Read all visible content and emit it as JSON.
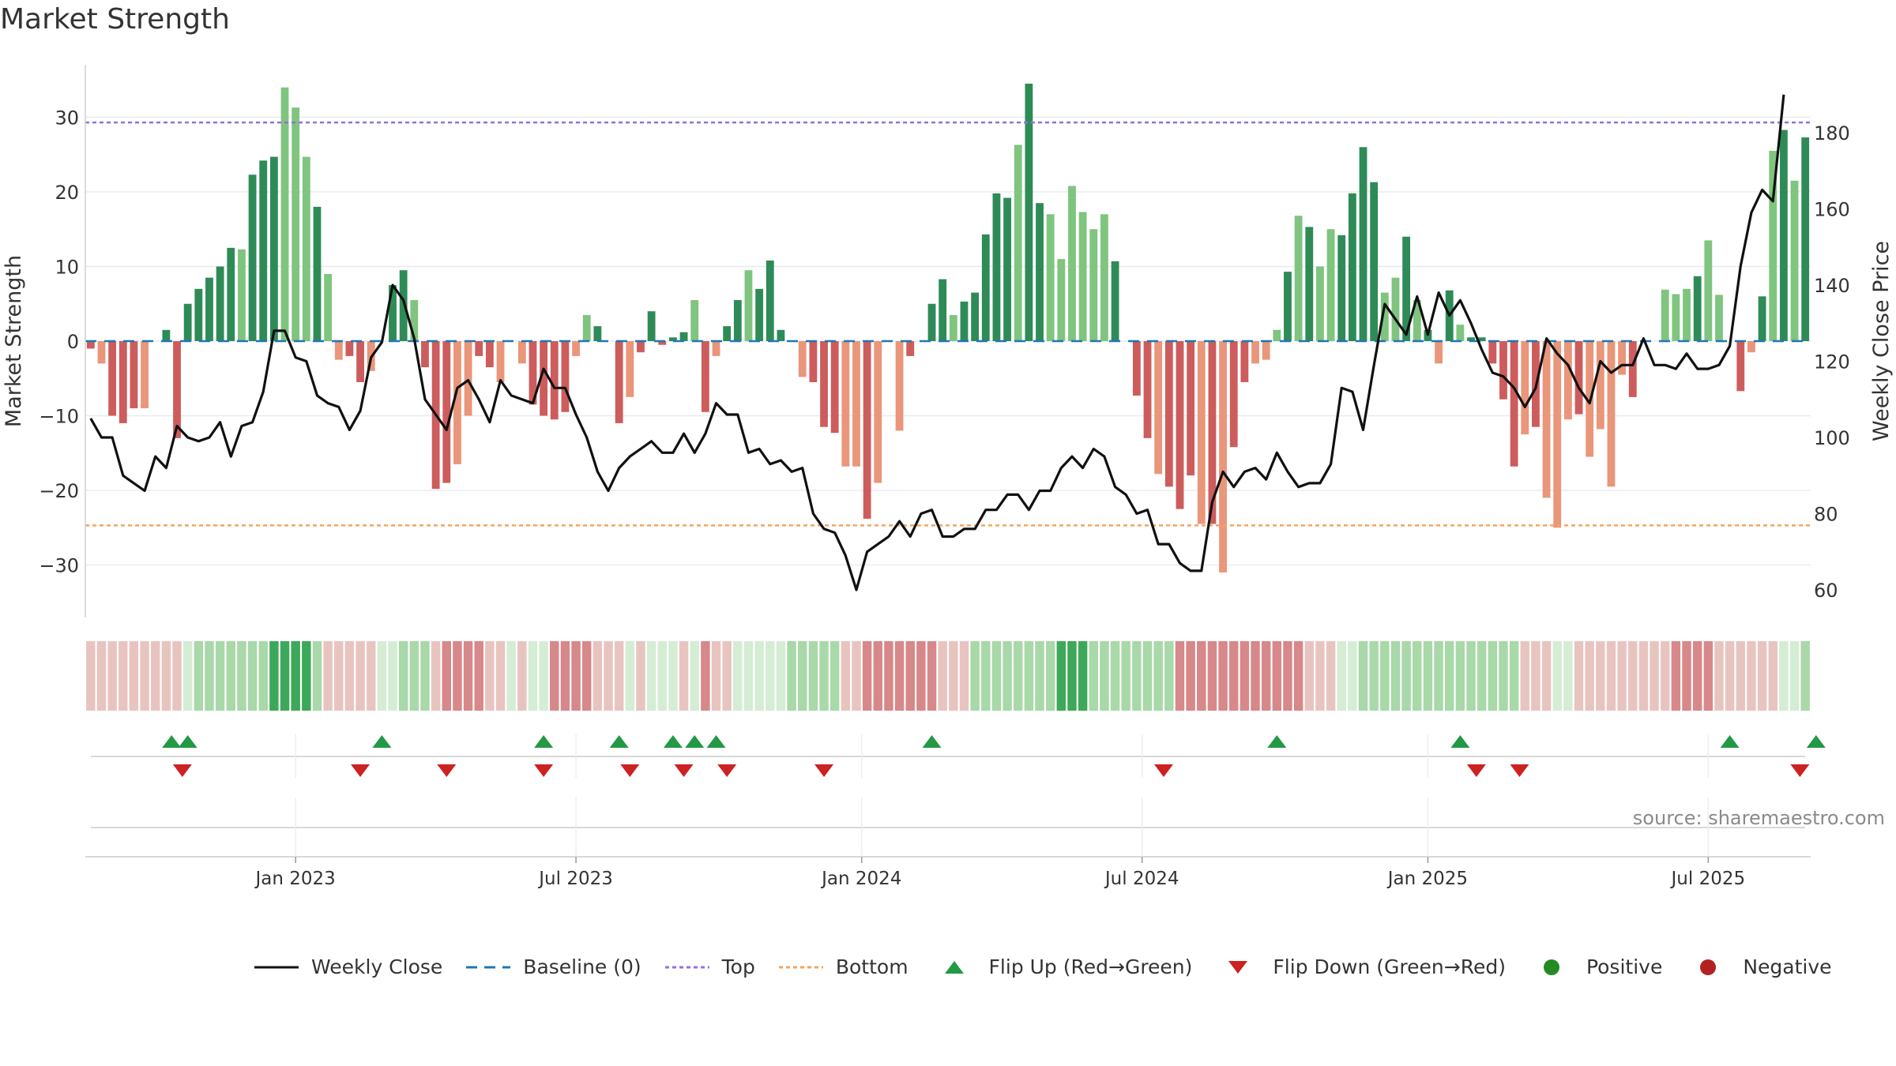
{
  "title": "Market Strength",
  "source": "source: sharemaestro.com",
  "colors": {
    "dark_green": "#2e8b57",
    "light_green": "#7fc47f",
    "dark_red": "#cd5c5c",
    "light_red": "#e9967a",
    "baseline": "#1f77b4",
    "top": "#9370db",
    "bottom": "#f4a460",
    "close": "#111111",
    "flip_up": "#229944",
    "flip_down": "#cc2222",
    "positive": "#228b22",
    "negative": "#b22222"
  },
  "legend": [
    {
      "key": "close",
      "label": "Weekly Close",
      "symbol": "line"
    },
    {
      "key": "baseline",
      "label": "Baseline (0)",
      "symbol": "dash"
    },
    {
      "key": "top",
      "label": "Top",
      "symbol": "dot"
    },
    {
      "key": "bottom",
      "label": "Bottom",
      "symbol": "dot"
    },
    {
      "key": "flip_up",
      "label": "Flip Up (Red→Green)",
      "symbol": "tri-up"
    },
    {
      "key": "flip_down",
      "label": "Flip Down (Green→Red)",
      "symbol": "tri-down"
    },
    {
      "key": "positive",
      "label": "Positive",
      "symbol": "circle"
    },
    {
      "key": "negative",
      "label": "Negative",
      "symbol": "circle"
    }
  ],
  "chart_data": {
    "type": "bar",
    "title": "Market Strength",
    "ylabel": "Market Strength",
    "y2label": "Weekly Close Price",
    "ylim": [
      -36,
      37
    ],
    "y2lim": [
      50,
      197
    ],
    "yticks": [
      30,
      20,
      10,
      0,
      -10,
      -20,
      -30
    ],
    "ytick_labels": [
      "30",
      "20",
      "10",
      "0",
      "−10",
      "−20",
      "−30"
    ],
    "y2ticks": [
      180,
      160,
      140,
      120,
      100,
      80,
      60
    ],
    "x_ticks": [
      {
        "week": 19,
        "label": "Jan 2023"
      },
      {
        "week": 45,
        "label": "Jul 2023"
      },
      {
        "week": 71.5,
        "label": "Jan 2024"
      },
      {
        "week": 97.5,
        "label": "Jul 2024"
      },
      {
        "week": 124,
        "label": "Jan 2025"
      },
      {
        "week": 150,
        "label": "Jul 2025"
      }
    ],
    "top_level": 29.3,
    "bottom_level": -24.7,
    "baseline": 0,
    "series": [
      {
        "name": "Market Strength",
        "values": [
          -1,
          -3,
          -10,
          -11,
          -9,
          -9,
          0,
          1.5,
          -13,
          5,
          7,
          8.5,
          10,
          12.5,
          12.3,
          22.3,
          24.2,
          24.7,
          34,
          31.3,
          24.7,
          18,
          9,
          -2.5,
          -2,
          -5.5,
          -4,
          0,
          7.5,
          9.5,
          5.5,
          -3.5,
          -19.8,
          -19,
          -16.5,
          -10,
          -2,
          -3.5,
          -5.5,
          0,
          -3,
          -8.5,
          -10,
          -10.5,
          -9.5,
          -2,
          3.5,
          2,
          0,
          -11,
          -7.5,
          -1.5,
          4,
          -0.5,
          0.5,
          1.2,
          5.5,
          -9.5,
          -2,
          2,
          5.5,
          9.5,
          7,
          10.8,
          1.5,
          0,
          -4.8,
          -5.5,
          -11.5,
          -12.3,
          -16.8,
          -16.8,
          -23.8,
          -19,
          0,
          -12,
          -2,
          0,
          5,
          8.3,
          3.5,
          5.3,
          6.5,
          14.3,
          19.8,
          19.2,
          26.3,
          34.5,
          18.5,
          17,
          11,
          20.8,
          17.3,
          15,
          17,
          10.7,
          0,
          -7.3,
          -13,
          -17.8,
          -19.5,
          -22.5,
          -18,
          -24.5,
          -24.5,
          -31,
          -14.2,
          -5.5,
          -3,
          -2.5,
          1.5,
          9.3,
          16.8,
          15.3,
          10,
          15,
          14.2,
          19.8,
          26,
          21.3,
          6.5,
          8.5,
          14,
          5.5,
          1.5,
          -3,
          6.8,
          2.2,
          0.5,
          0.5,
          -3,
          -7.8,
          -16.8,
          -12.5,
          -11.5,
          -21,
          -25,
          -10.5,
          -9.8,
          -15.5,
          -11.8,
          -19.5,
          -4.5,
          -7.5,
          0,
          0,
          6.9,
          6.3,
          7,
          8.7,
          13.5,
          6.2,
          0,
          -6.7,
          -1.5,
          6,
          25.5,
          28.3,
          21.5,
          27.3
        ],
        "shades": "dmdddmddddddddmdddmmmdmmddmdddmdddmmddmdmddddmmdmdmdddddmdmddmdddmmdddmmdmmmddddmdddddmddmmmmmmddddmdddmdmddmmmdmdmmddddmmdmdmdmdddddmdmmmdmmmmdddmmmdmmddmdmdmdddmmdmd"
      },
      {
        "name": "Weekly Close",
        "values": [
          105,
          100,
          100,
          90,
          88,
          86,
          95,
          92,
          103,
          100,
          99,
          100,
          104,
          95,
          103,
          104,
          112,
          128,
          128,
          121,
          120,
          111,
          109,
          108,
          102,
          107,
          121,
          125,
          140,
          136,
          126,
          110,
          106,
          102,
          113,
          115,
          110,
          104,
          115,
          111,
          110,
          109,
          118,
          113,
          113,
          106,
          100,
          91,
          86,
          92,
          95,
          97,
          99,
          96,
          96,
          101,
          96,
          101,
          109,
          106,
          106,
          96,
          97,
          93,
          94,
          91,
          92,
          80,
          76,
          75,
          69,
          60,
          70,
          72,
          74,
          78,
          74,
          80,
          81,
          74,
          74,
          76,
          76,
          81,
          81,
          85,
          85,
          81,
          86,
          86,
          92,
          95,
          92,
          97,
          95,
          87,
          85,
          80,
          81,
          72,
          72,
          67,
          65,
          65,
          83,
          91,
          87,
          91,
          92,
          89,
          96,
          91,
          87,
          88,
          88,
          93,
          113,
          112,
          102,
          119,
          135,
          131,
          127,
          137,
          127,
          138,
          132,
          136,
          130,
          123,
          117,
          116,
          113,
          108,
          113,
          126,
          122,
          119,
          113,
          109,
          120,
          117,
          119,
          119,
          126,
          119,
          119,
          118,
          122,
          118,
          118,
          119,
          124,
          145,
          159,
          165,
          162,
          190
        ]
      }
    ],
    "color_strip": "LLLLLLLLLlgggggggGGGGgLLLLLllgggLrrrrLLlLllrrrrLLLlLlllLlrLLlllllgggggLLrrrrrrrLLLggggggggGGGggggggggrrrrrrrrrrrrLLLllgggggggggggggggLLLllLLLLLLLLLrrrrLLLLLLllgggggggggGGGGG",
    "flip_up_weeks": [
      7.5,
      9,
      27,
      42,
      49,
      54,
      56,
      58,
      78,
      110,
      127,
      152,
      160
    ],
    "flip_down_weeks": [
      8.5,
      25,
      33,
      42,
      50,
      55,
      59,
      68,
      99.5,
      128.5,
      132.5,
      158.5
    ]
  }
}
